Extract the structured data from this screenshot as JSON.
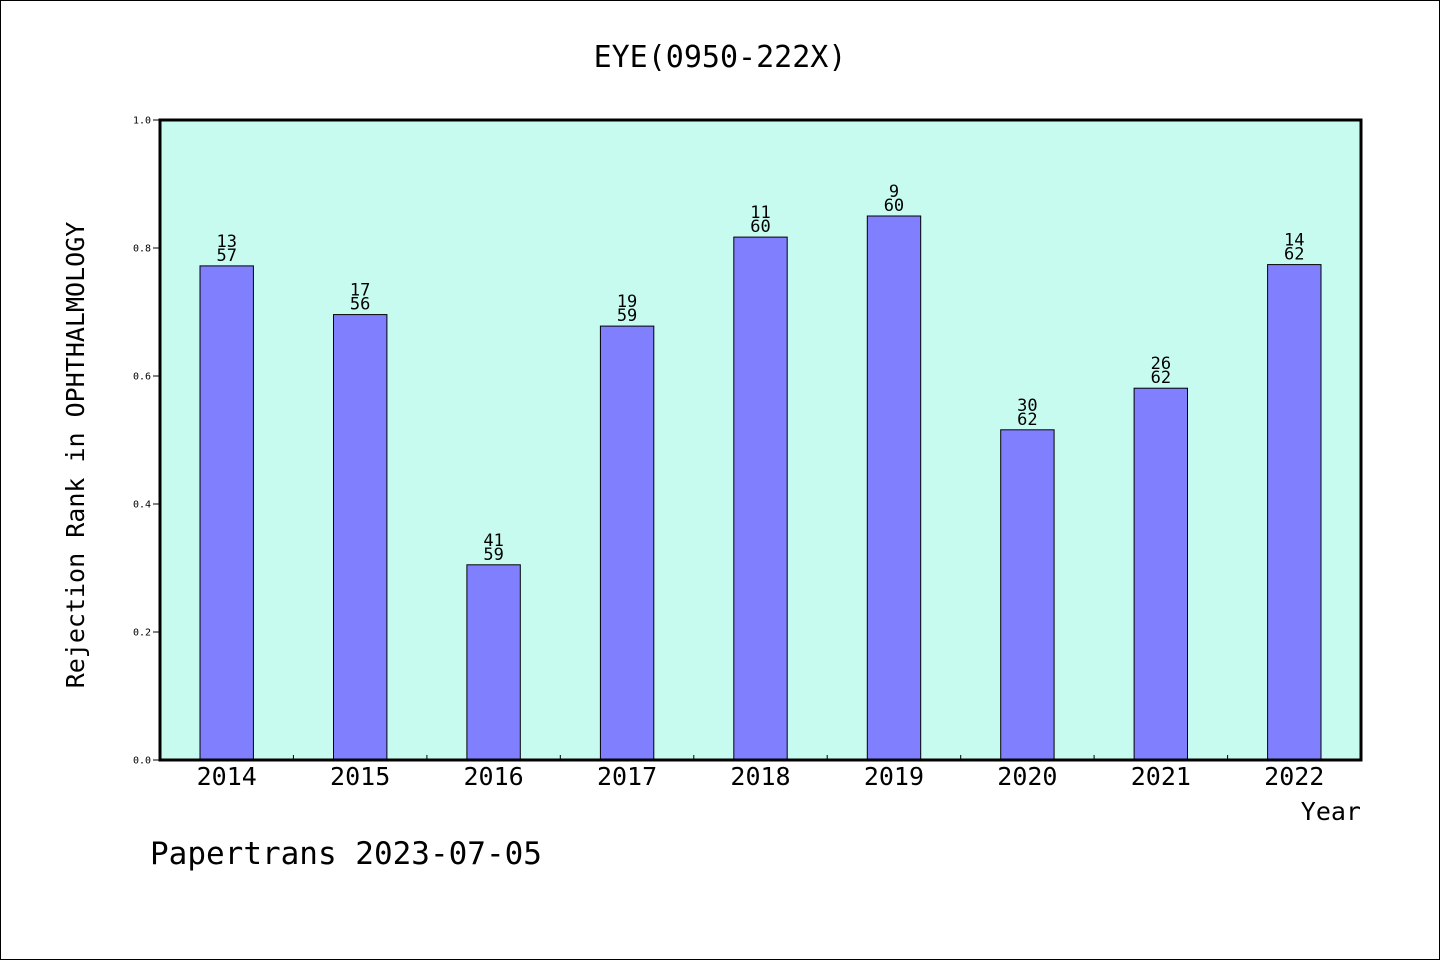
{
  "chart_data": {
    "type": "bar",
    "title": "EYE(0950-222X)",
    "xlabel": "Year",
    "ylabel": "Rejection Rank in OPHTHALMOLOGY",
    "ylim": [
      0,
      1.0
    ],
    "yticks": [
      "0.0",
      "0.2",
      "0.4",
      "0.6",
      "0.8",
      "1.0"
    ],
    "categories": [
      "2014",
      "2015",
      "2016",
      "2017",
      "2018",
      "2019",
      "2020",
      "2021",
      "2022"
    ],
    "values": [
      0.772,
      0.696,
      0.305,
      0.678,
      0.817,
      0.85,
      0.516,
      0.581,
      0.774
    ],
    "bar_labels": [
      {
        "rank": "13",
        "total": "57"
      },
      {
        "rank": "17",
        "total": "56"
      },
      {
        "rank": "41",
        "total": "59"
      },
      {
        "rank": "19",
        "total": "59"
      },
      {
        "rank": "11",
        "total": "60"
      },
      {
        "rank": "9",
        "total": "60"
      },
      {
        "rank": "30",
        "total": "62"
      },
      {
        "rank": "26",
        "total": "62"
      },
      {
        "rank": "14",
        "total": "62"
      }
    ],
    "colors": {
      "plot_background": "#c8fbef",
      "bar_fill": "#8080ff",
      "bar_stroke": "#000000"
    },
    "grid": false
  },
  "footer": {
    "text": "Papertrans 2023-07-05"
  }
}
